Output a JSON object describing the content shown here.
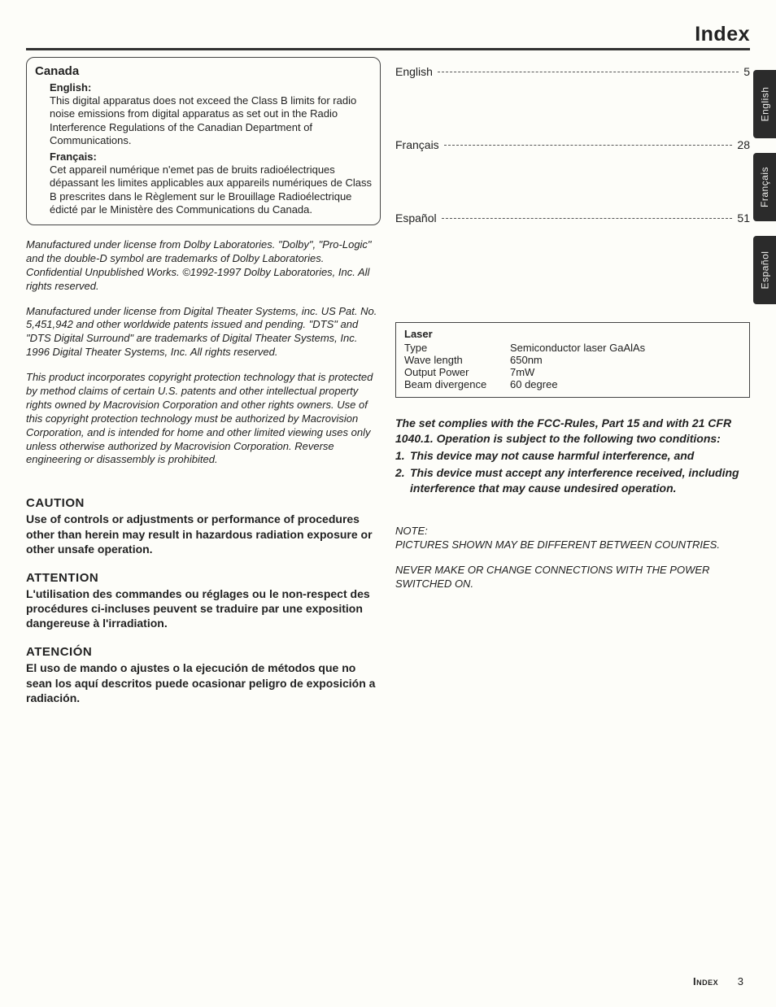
{
  "header": {
    "title": "Index"
  },
  "side_tabs": [
    {
      "label": "English"
    },
    {
      "label": "Français"
    },
    {
      "label": "Español"
    }
  ],
  "canada": {
    "country": "Canada",
    "english": {
      "label": "English:",
      "body": "This digital apparatus does not exceed the Class B limits for radio noise emissions from digital apparatus as set out in the Radio Interference Regulations of the Canadian Department of Communications."
    },
    "francais": {
      "label": "Français:",
      "body": "Cet appareil numérique n'emet pas de bruits radioélectriques dépassant les limites applicables aux appareils numériques de Class B prescrites dans le Règlement sur le Brouillage Radioélectrique édicté par le Ministère des Communications du Canada."
    }
  },
  "licenses": {
    "dolby": "Manufactured under license from Dolby Laboratories. \"Dolby\", \"Pro-Logic\" and the double-D symbol are trademarks of Dolby Laboratories. Confidential Unpublished Works. ©1992-1997 Dolby Laboratories, Inc. All rights reserved.",
    "dts": "Manufactured under license from Digital Theater Systems, inc. US Pat. No. 5,451,942 and other worldwide patents issued and pending. \"DTS\" and \"DTS Digital Surround\" are trademarks of Digital Theater Systems, Inc. 1996 Digital Theater Systems, Inc. All rights reserved.",
    "macrovision": "This product incorporates copyright protection technology that is protected by method claims of certain U.S. patents and other intellectual property rights owned by Macrovision Corporation and other rights owners. Use of this copyright protection technology must be authorized by Macrovision Corporation, and is intended for home and other limited viewing uses only unless otherwise authorized by Macrovision Corporation. Reverse engineering or disassembly is prohibited."
  },
  "warnings": {
    "caution": {
      "heading": "CAUTION",
      "body": "Use of controls or adjustments or performance of procedures other than herein may result in hazardous radiation exposure or other unsafe operation."
    },
    "attention": {
      "heading": "ATTENTION",
      "body": "L'utilisation des commandes ou réglages ou le non-respect des procédures ci-incluses peuvent se traduire par une exposition dangereuse à l'irradiation."
    },
    "atencion": {
      "heading": "ATENCIÓN",
      "body": "El uso de mando o ajustes o la ejecución de métodos que no sean los aquí descritos puede ocasionar peligro de exposición a radiación."
    }
  },
  "index": {
    "entries": [
      {
        "label": "English",
        "page": "5"
      },
      {
        "label": "Français",
        "page": "28"
      },
      {
        "label": "Español",
        "page": "51"
      }
    ]
  },
  "laser": {
    "heading": "Laser",
    "rows": [
      {
        "k": "Type",
        "v": "Semiconductor laser GaAlAs"
      },
      {
        "k": "Wave length",
        "v": "650nm"
      },
      {
        "k": "Output Power",
        "v": "7mW"
      },
      {
        "k": "Beam divergence",
        "v": "60 degree"
      }
    ]
  },
  "fcc": {
    "intro": "The set complies with the FCC-Rules, Part 15 and with 21 CFR 1040.1. Operation is subject to the following two conditions:",
    "c1_n": "1.",
    "c1": "This device may not cause harmful interference, and",
    "c2_n": "2.",
    "c2": "This device must accept any interference received, including interference that may cause undesired operation."
  },
  "notes": {
    "note_label": "NOTE:",
    "body1": "PICTURES SHOWN MAY BE DIFFERENT BETWEEN COUNTRIES.",
    "body2": "NEVER MAKE OR CHANGE CONNECTIONS WITH THE POWER SWITCHED ON."
  },
  "footer": {
    "label": "Index",
    "page": "3"
  }
}
